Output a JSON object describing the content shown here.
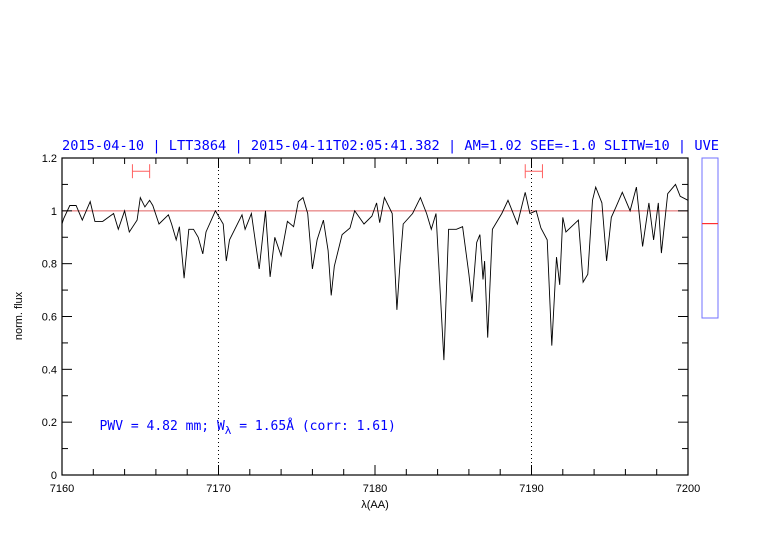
{
  "chart_data": {
    "type": "line",
    "title": "2015-04-10 | LTT3864 | 2015-04-11T02:05:41.382 | AM=1.02 SEE=-1.0 SLITW=10 | UVE",
    "xlabel": "λ(AA)",
    "ylabel": "norm. flux",
    "xlim": [
      7160,
      7200
    ],
    "ylim": [
      0,
      1.2
    ],
    "x_ticks": [
      "7160",
      "7170",
      "7180",
      "7190",
      "7200"
    ],
    "y_ticks": [
      "0",
      "0.2",
      "0.4",
      "0.6",
      "0.8",
      "1",
      "1.2"
    ],
    "x_tick_values": [
      7160,
      7170,
      7180,
      7190,
      7200
    ],
    "y_tick_values": [
      0,
      0.2,
      0.4,
      0.6,
      0.8,
      1.0,
      1.2
    ],
    "reference_line": 1.0,
    "vertical_markers": [
      7170,
      7190
    ],
    "interval_markers": [
      {
        "x0": 7164.5,
        "x1": 7165.6,
        "y": 1.15
      },
      {
        "x0": 7189.6,
        "x1": 7190.7,
        "y": 1.15
      }
    ],
    "annotation": {
      "text_before": "PWV = 4.82 mm; W",
      "subscript": "λ",
      "text_after": " = 1.65Å (corr: 1.61)",
      "x": 7162.4,
      "y": 0.19
    },
    "side_indicator_level": 0.59,
    "colors": {
      "spectrum": "#000000",
      "reference": "#e06060",
      "markers": "#ff6060",
      "text": "#0000ff",
      "indicator": "#7070ff"
    },
    "series": [
      {
        "name": "spectrum",
        "x": [
          7160.0,
          7160.1,
          7160.5,
          7160.9,
          7161.3,
          7161.8,
          7162.1,
          7162.6,
          7163.3,
          7163.6,
          7164.0,
          7164.3,
          7164.8,
          7165.0,
          7165.3,
          7165.6,
          7165.8,
          7166.2,
          7166.8,
          7167.0,
          7167.3,
          7167.5,
          7167.8,
          7168.1,
          7168.4,
          7168.7,
          7169.0,
          7169.2,
          7169.8,
          7170.3,
          7170.5,
          7170.7,
          7171.5,
          7171.7,
          7172.1,
          7172.6,
          7173.0,
          7173.3,
          7173.6,
          7174.0,
          7174.4,
          7174.8,
          7175.1,
          7175.4,
          7175.7,
          7176.0,
          7176.3,
          7176.7,
          7177.0,
          7177.2,
          7177.4,
          7177.9,
          7178.4,
          7178.7,
          7179.3,
          7179.8,
          7180.1,
          7180.3,
          7180.6,
          7181.1,
          7181.4,
          7181.6,
          7181.8,
          7182.4,
          7182.9,
          7183.3,
          7183.6,
          7183.9,
          7184.4,
          7184.7,
          7185.2,
          7185.6,
          7186.0,
          7186.2,
          7186.5,
          7186.7,
          7186.9,
          7187.0,
          7187.2,
          7187.5,
          7188.1,
          7188.5,
          7189.1,
          7189.6,
          7189.9,
          7190.3,
          7190.6,
          7191.0,
          7191.3,
          7191.6,
          7191.8,
          7192.0,
          7192.2,
          7193.0,
          7193.3,
          7193.6,
          7193.9,
          7194.1,
          7194.5,
          7194.8,
          7195.1,
          7195.4,
          7195.8,
          7196.3,
          7196.7,
          7197.1,
          7197.5,
          7197.8,
          7198.1,
          7198.3,
          7198.7,
          7199.2,
          7199.5,
          7200.0
        ],
        "y": [
          0.95,
          0.97,
          1.02,
          1.02,
          0.965,
          1.035,
          0.96,
          0.96,
          0.99,
          0.93,
          1.0,
          0.92,
          0.965,
          1.05,
          1.015,
          1.04,
          1.02,
          0.95,
          0.985,
          0.95,
          0.89,
          0.94,
          0.745,
          0.93,
          0.93,
          0.9,
          0.837,
          0.92,
          1.0,
          0.95,
          0.81,
          0.89,
          0.985,
          0.93,
          0.99,
          0.78,
          1.0,
          0.75,
          0.9,
          0.83,
          0.96,
          0.94,
          1.035,
          1.05,
          0.99,
          0.78,
          0.89,
          0.965,
          0.85,
          0.68,
          0.79,
          0.91,
          0.935,
          1.0,
          0.95,
          0.98,
          1.03,
          0.955,
          1.05,
          0.99,
          0.625,
          0.8,
          0.95,
          0.99,
          1.05,
          0.99,
          0.93,
          0.99,
          0.435,
          0.93,
          0.93,
          0.94,
          0.76,
          0.655,
          0.88,
          0.91,
          0.74,
          0.81,
          0.52,
          0.93,
          0.99,
          1.04,
          0.95,
          1.07,
          0.99,
          1.0,
          0.935,
          0.89,
          0.49,
          0.825,
          0.72,
          0.975,
          0.92,
          0.965,
          0.73,
          0.76,
          1.04,
          1.09,
          1.03,
          0.81,
          0.975,
          1.015,
          1.07,
          1.0,
          1.09,
          0.865,
          1.03,
          0.89,
          1.03,
          0.84,
          1.065,
          1.1,
          1.055,
          1.04
        ]
      }
    ]
  }
}
